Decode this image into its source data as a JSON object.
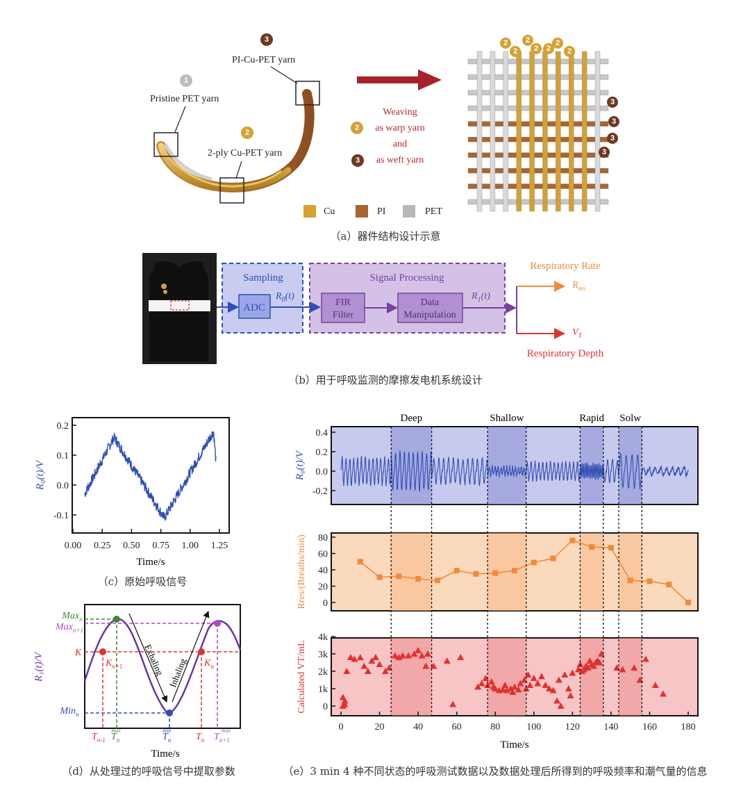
{
  "colors": {
    "cu": "#d4a233",
    "pi": "#a86530",
    "pet": "#b8b8b8",
    "blue": "#2f4fb5",
    "orange": "#f08a3a",
    "red": "#e03232",
    "purple": "#7a3fa0",
    "arrowRed": "#a8202a"
  },
  "panel_a": {
    "label_pristine": "Pristine PET yarn",
    "label_2ply": "2-ply Cu-PET yarn",
    "label_pi": "PI-Cu-PET yarn",
    "badge_1": "1",
    "badge_2": "2",
    "badge_3": "3",
    "weaving": [
      "Weaving",
      "as warp yarn",
      "and",
      "as weft yarn"
    ],
    "legend": [
      "Cu",
      "PI",
      "PET"
    ],
    "caption": "（a）器件结构设计示意"
  },
  "panel_b": {
    "sampling": "Sampling",
    "signal_processing": "Signal Processing",
    "adc": "ADC",
    "fir": [
      "FIR",
      "Filter"
    ],
    "data_manip": [
      "Data",
      "Manipulation"
    ],
    "r0": "R",
    "r0_sub": "0",
    "r0_t": "(t)",
    "r1": "R",
    "r1_sub": "1",
    "r1_t": "(t)",
    "resp_rate": "Respiratory Rate",
    "resp_depth": "Respiratory Depth",
    "rres": "R",
    "rres_sub": "res",
    "vt": "V",
    "vt_sub": "T",
    "caption": "（b）用于呼吸监测的摩擦发电机系统设计"
  },
  "panel_c": {
    "ylabel": "R₀(t)/V",
    "xlabel": "Time/s",
    "xticks": [
      "0.00",
      "0.25",
      "0.50",
      "0.75",
      "1.00",
      "1.25"
    ],
    "yticks": [
      "0.2",
      "0.1",
      "0.0",
      "-0.1"
    ],
    "caption": "（c）原始呼吸信号"
  },
  "panel_d": {
    "ylabel": "R₁(t)/V",
    "xlabel": "Time/s",
    "labels": {
      "max_n": "Max",
      "max_n_sub": "n",
      "max_n1": "Max",
      "max_n1_sub": "n+1",
      "k": "K",
      "min_n": "Min",
      "min_n_sub": "n",
      "kn1": "K",
      "kn1_sub": "n+1",
      "kn": "K",
      "kn_sub": "n",
      "exhaling": "Exhaling",
      "inhaling": "Inhaling"
    },
    "xlabels": [
      {
        "b": "T",
        "s": "n-1"
      },
      {
        "b": "T",
        "s": "n",
        "sup": "max"
      },
      {
        "b": "T",
        "s": "n",
        "sup": "min"
      },
      {
        "b": "T",
        "s": "n"
      },
      {
        "b": "T",
        "s": "n+1",
        "sup": "max"
      }
    ],
    "caption": "（d）从处理过的呼吸信号中提取参数"
  },
  "panel_e": {
    "states": [
      "Deep",
      "Shallow",
      "Rapid",
      "Solw"
    ],
    "top_ylabel": "R₀(t)/V",
    "top_yticks": [
      "0.4",
      "0.2",
      "0.0",
      "-0.2"
    ],
    "mid_ylabel": "Rres/(Breaths/min)",
    "mid_yticks": [
      "80",
      "60",
      "40",
      "20",
      "0"
    ],
    "bot_ylabel": "Calculated VT/mL",
    "bot_yticks": [
      "4k",
      "3k",
      "2k",
      "1k",
      "0"
    ],
    "xticks": [
      "0",
      "20",
      "40",
      "60",
      "80",
      "100",
      "120",
      "140",
      "160",
      "180"
    ],
    "xlabel": "Time/s",
    "caption": "（e）3 min 4 种不同状态的呼吸测试数据以及数据处理后所得到的呼吸频率和潮气量的信息"
  },
  "chart_data": [
    {
      "type": "line",
      "panel": "e-middle",
      "xlabel": "Time/s",
      "ylabel": "Rres/(Breaths/min)",
      "x": [
        10,
        20,
        30,
        40,
        50,
        60,
        70,
        80,
        90,
        100,
        110,
        120,
        130,
        140,
        150,
        160,
        170,
        180
      ],
      "values": [
        50,
        31,
        32,
        29,
        27,
        39,
        35,
        36,
        39,
        49,
        54,
        76,
        68,
        67,
        27,
        26,
        22,
        0
      ],
      "ylim": [
        -5,
        85
      ]
    },
    {
      "type": "scatter",
      "panel": "e-bottom",
      "xlabel": "Time/s",
      "ylabel": "Calculated VT/mL",
      "points": [
        [
          1,
          500
        ],
        [
          1,
          0
        ],
        [
          2,
          300
        ],
        [
          2,
          100
        ],
        [
          3,
          2000
        ],
        [
          5,
          2800
        ],
        [
          7,
          2700
        ],
        [
          10,
          2800
        ],
        [
          12,
          2300
        ],
        [
          14,
          2000
        ],
        [
          16,
          2600
        ],
        [
          18,
          2800
        ],
        [
          20,
          2400
        ],
        [
          23,
          2000
        ],
        [
          25,
          2200
        ],
        [
          28,
          2900
        ],
        [
          30,
          2800
        ],
        [
          32,
          2900
        ],
        [
          35,
          2900
        ],
        [
          38,
          3000
        ],
        [
          40,
          3200
        ],
        [
          42,
          2900
        ],
        [
          44,
          2300
        ],
        [
          45,
          3000
        ],
        [
          48,
          2300
        ],
        [
          55,
          2600
        ],
        [
          58,
          100
        ],
        [
          62,
          2800
        ],
        [
          71,
          1100
        ],
        [
          73,
          1300
        ],
        [
          75,
          1600
        ],
        [
          76,
          1200
        ],
        [
          78,
          1400
        ],
        [
          79,
          1100
        ],
        [
          80,
          1000
        ],
        [
          82,
          900
        ],
        [
          84,
          950
        ],
        [
          85,
          1200
        ],
        [
          86,
          900
        ],
        [
          88,
          1000
        ],
        [
          89,
          800
        ],
        [
          90,
          1100
        ],
        [
          92,
          950
        ],
        [
          93,
          1300
        ],
        [
          95,
          1500
        ],
        [
          96,
          1000
        ],
        [
          97,
          1800
        ],
        [
          98,
          1200
        ],
        [
          100,
          1600
        ],
        [
          102,
          1300
        ],
        [
          104,
          1700
        ],
        [
          106,
          1200
        ],
        [
          108,
          1000
        ],
        [
          110,
          900
        ],
        [
          112,
          300
        ],
        [
          113,
          1500
        ],
        [
          114,
          0
        ],
        [
          116,
          1800
        ],
        [
          118,
          1000
        ],
        [
          119,
          600
        ],
        [
          120,
          1900
        ],
        [
          123,
          2100
        ],
        [
          124,
          2400
        ],
        [
          125,
          2000
        ],
        [
          126,
          2100
        ],
        [
          127,
          2300
        ],
        [
          128,
          2200
        ],
        [
          129,
          2600
        ],
        [
          130,
          2400
        ],
        [
          131,
          2300
        ],
        [
          132,
          2500
        ],
        [
          133,
          2600
        ],
        [
          134,
          2500
        ],
        [
          135,
          3000
        ],
        [
          143,
          2200
        ],
        [
          146,
          2100
        ],
        [
          152,
          2200
        ],
        [
          155,
          1500
        ],
        [
          158,
          2700
        ],
        [
          163,
          1200
        ],
        [
          167,
          700
        ]
      ],
      "ylim": [
        -400,
        4000
      ]
    }
  ]
}
